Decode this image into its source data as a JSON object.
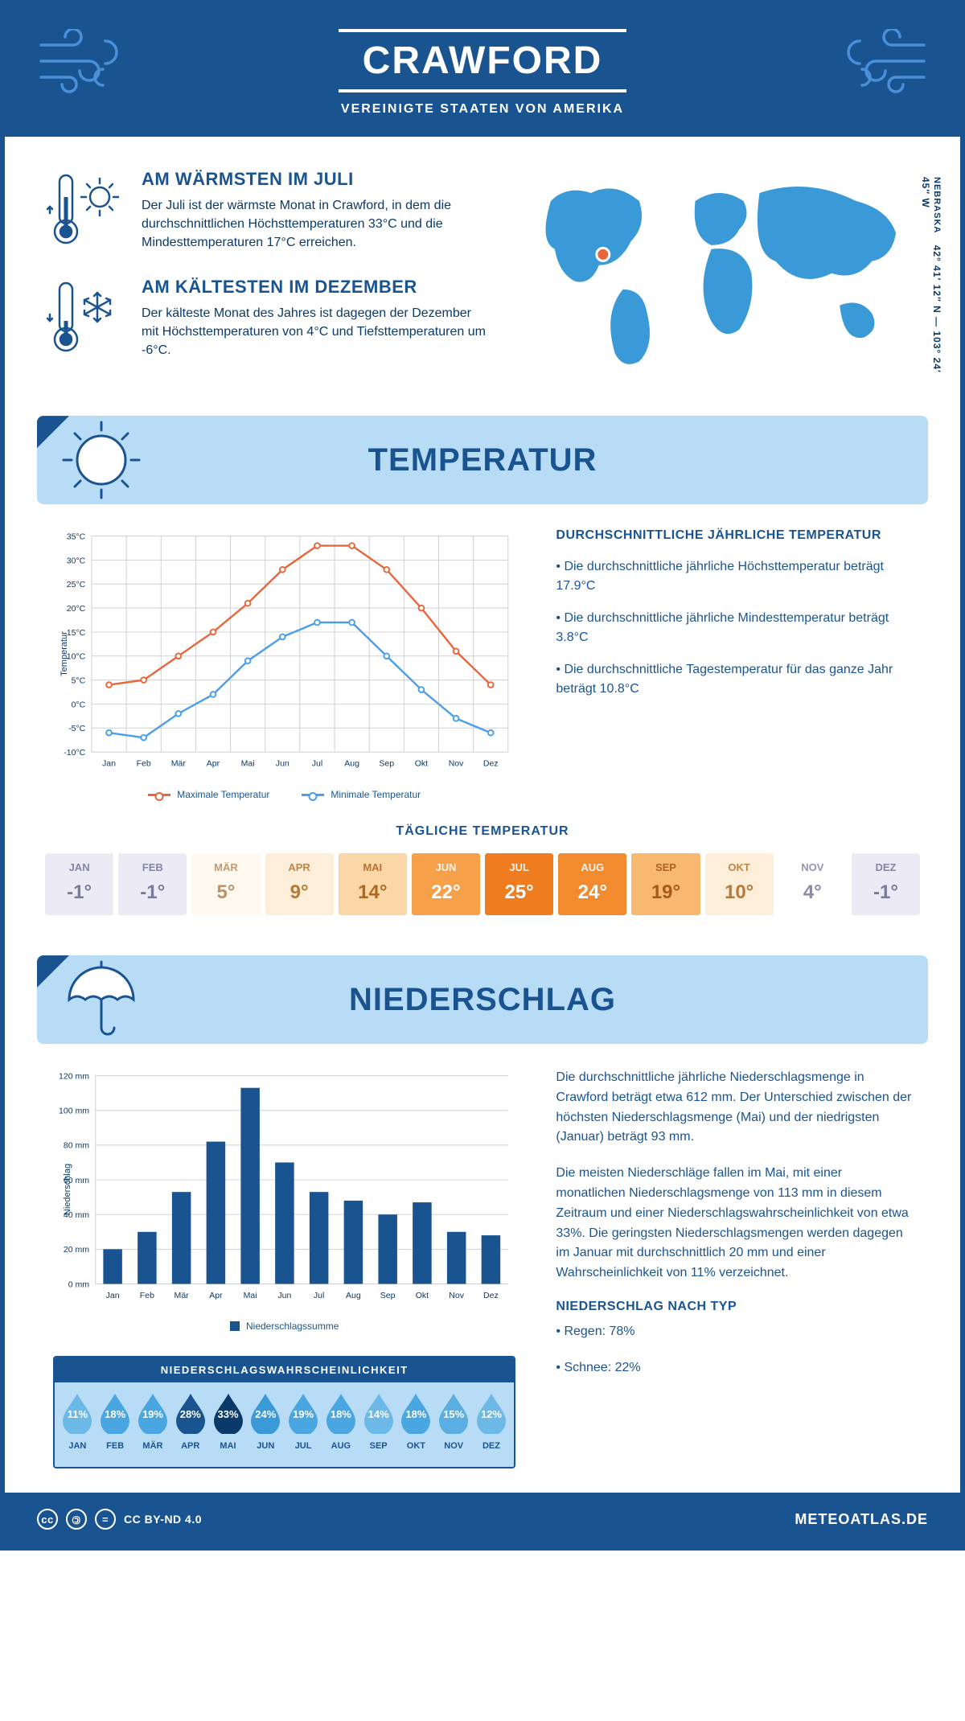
{
  "header": {
    "title": "CRAWFORD",
    "subtitle": "VEREINIGTE STAATEN VON AMERIKA"
  },
  "intro": {
    "warm": {
      "heading": "AM WÄRMSTEN IM JULI",
      "text": "Der Juli ist der wärmste Monat in Crawford, in dem die durchschnittlichen Höchsttemperaturen 33°C und die Mindesttemperaturen 17°C erreichen."
    },
    "cold": {
      "heading": "AM KÄLTESTEN IM DEZEMBER",
      "text": "Der kälteste Monat des Jahres ist dagegen der Dezember mit Höchsttemperaturen von 4°C und Tiefsttemperaturen um -6°C."
    },
    "coords": {
      "region": "NEBRASKA",
      "lat": "42° 41′ 12″ N",
      "sep": " — ",
      "lon": "103° 24′ 45″ W"
    },
    "marker": {
      "cx_pct": 21,
      "cy_pct": 41
    }
  },
  "temperature": {
    "banner": "TEMPERATUR",
    "chart": {
      "type": "line",
      "months": [
        "Jan",
        "Feb",
        "Mär",
        "Apr",
        "Mai",
        "Jun",
        "Jul",
        "Aug",
        "Sep",
        "Okt",
        "Nov",
        "Dez"
      ],
      "max_series": {
        "label": "Maximale Temperatur",
        "color": "#e8663c",
        "values": [
          4,
          5,
          10,
          15,
          21,
          28,
          33,
          33,
          28,
          20,
          11,
          4
        ]
      },
      "min_series": {
        "label": "Minimale Temperatur",
        "color": "#4a9fe8",
        "values": [
          -6,
          -7,
          -2,
          2,
          9,
          14,
          17,
          17,
          10,
          3,
          -3,
          -6
        ]
      },
      "y_label": "Temperatur",
      "y_min": -10,
      "y_max": 35,
      "y_step": 5,
      "grid_color": "#cfcfcf",
      "background": "#ffffff",
      "line_width": 2.5,
      "marker_radius": 3.5
    },
    "info": {
      "heading": "DURCHSCHNITTLICHE JÄHRLICHE TEMPERATUR",
      "b1": "• Die durchschnittliche jährliche Höchsttemperatur beträgt 17.9°C",
      "b2": "• Die durchschnittliche jährliche Mindesttemperatur beträgt 3.8°C",
      "b3": "• Die durchschnittliche Tagestemperatur für das ganze Jahr beträgt 10.8°C"
    },
    "daily": {
      "heading": "TÄGLICHE TEMPERATUR",
      "cells": [
        {
          "m": "JAN",
          "v": "-1°",
          "bg": "#eceaf5",
          "fg": "#7a7a9a"
        },
        {
          "m": "FEB",
          "v": "-1°",
          "bg": "#eceaf5",
          "fg": "#7a7a9a"
        },
        {
          "m": "MÄR",
          "v": "5°",
          "bg": "#fef8ee",
          "fg": "#b8926a"
        },
        {
          "m": "APR",
          "v": "9°",
          "bg": "#fdeed9",
          "fg": "#b87a3a"
        },
        {
          "m": "MAI",
          "v": "14°",
          "bg": "#fbd7a8",
          "fg": "#b06820"
        },
        {
          "m": "JUN",
          "v": "22°",
          "bg": "#f6a04a",
          "fg": "#ffffff"
        },
        {
          "m": "JUL",
          "v": "25°",
          "bg": "#ef7c1f",
          "fg": "#ffffff"
        },
        {
          "m": "AUG",
          "v": "24°",
          "bg": "#f18b2e",
          "fg": "#ffffff"
        },
        {
          "m": "SEP",
          "v": "19°",
          "bg": "#f7b86f",
          "fg": "#a65a18"
        },
        {
          "m": "OKT",
          "v": "10°",
          "bg": "#fdeed9",
          "fg": "#b87a3a"
        },
        {
          "m": "NOV",
          "v": "4°",
          "bg": "#ffffff",
          "fg": "#8a8aa8"
        },
        {
          "m": "DEZ",
          "v": "-1°",
          "bg": "#eceaf5",
          "fg": "#7a7a9a"
        }
      ]
    }
  },
  "precip": {
    "banner": "NIEDERSCHLAG",
    "chart": {
      "type": "bar",
      "months": [
        "Jan",
        "Feb",
        "Mär",
        "Apr",
        "Mai",
        "Jun",
        "Jul",
        "Aug",
        "Sep",
        "Okt",
        "Nov",
        "Dez"
      ],
      "values": [
        20,
        30,
        53,
        82,
        113,
        70,
        53,
        48,
        40,
        47,
        30,
        28
      ],
      "unit": "mm",
      "y_label": "Niederschlag",
      "y_min": 0,
      "y_max": 120,
      "y_step": 20,
      "bar_color": "#1a5490",
      "grid_color": "#cfcfcf",
      "bar_width": 0.55,
      "legend": "Niederschlagssumme"
    },
    "para1": "Die durchschnittliche jährliche Niederschlagsmenge in Crawford beträgt etwa 612 mm. Der Unterschied zwischen der höchsten Niederschlagsmenge (Mai) und der niedrigsten (Januar) beträgt 93 mm.",
    "para2": "Die meisten Niederschläge fallen im Mai, mit einer monatlichen Niederschlagsmenge von 113 mm in diesem Zeitraum und einer Niederschlagswahrscheinlichkeit von etwa 33%. Die geringsten Niederschlagsmengen werden dagegen im Januar mit durchschnittlich 20 mm und einer Wahrscheinlichkeit von 11% verzeichnet.",
    "type_heading": "NIEDERSCHLAG NACH TYP",
    "type_b1": "• Regen: 78%",
    "type_b2": "• Schnee: 22%",
    "prob": {
      "heading": "NIEDERSCHLAGSWAHRSCHEINLICHKEIT",
      "months": [
        "JAN",
        "FEB",
        "MÄR",
        "APR",
        "MAI",
        "JUN",
        "JUL",
        "AUG",
        "SEP",
        "OKT",
        "NOV",
        "DEZ"
      ],
      "values": [
        11,
        18,
        19,
        28,
        33,
        24,
        19,
        18,
        14,
        18,
        15,
        12
      ],
      "drop_colors": [
        "#6cb8e6",
        "#4aa6e0",
        "#4aa6e0",
        "#1a5490",
        "#0a3a6a",
        "#3a9ad8",
        "#4aa6e0",
        "#4aa6e0",
        "#6cb8e6",
        "#4aa6e0",
        "#5aaee2",
        "#6cb8e6"
      ]
    }
  },
  "footer": {
    "license": "CC BY-ND 4.0",
    "brand": "METEOATLAS.DE"
  },
  "colors": {
    "primary": "#1a5490",
    "light_blue": "#b8dcf5",
    "mid_blue": "#4a9fe8",
    "orange": "#e8663c"
  }
}
